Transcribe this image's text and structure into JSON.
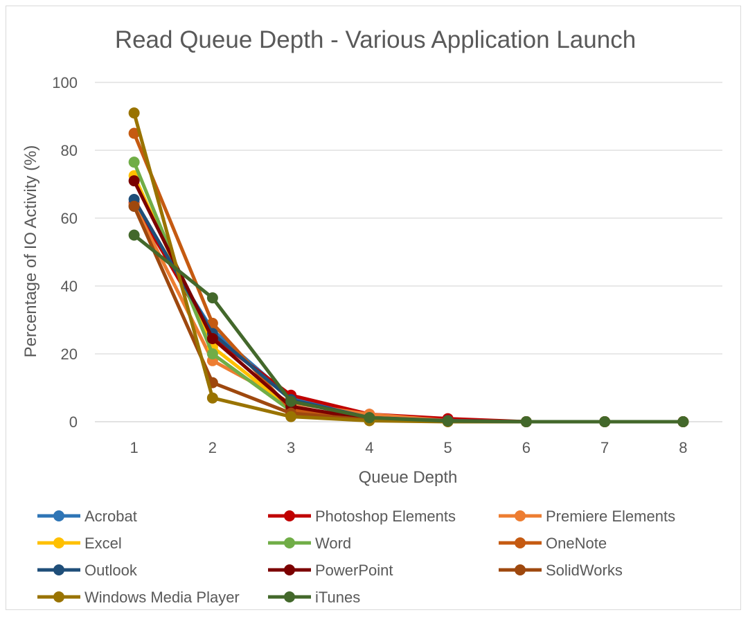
{
  "chart_data": {
    "type": "line",
    "title": "Read Queue Depth - Various Application Launch",
    "xlabel": "Queue Depth",
    "ylabel": "Percentage of IO Activity (%)",
    "x": [
      1,
      2,
      3,
      4,
      5,
      6,
      7,
      8
    ],
    "ylim": [
      0,
      100
    ],
    "yticks": [
      0,
      20,
      40,
      60,
      80,
      100
    ],
    "grid": true,
    "legend_position": "bottom",
    "series": [
      {
        "name": "Acrobat",
        "color": "#2e75b6",
        "values": [
          63.5,
          27,
          7,
          1,
          0.3,
          0,
          0,
          0
        ]
      },
      {
        "name": "Photoshop Elements",
        "color": "#c00000",
        "values": [
          64.5,
          25,
          7.8,
          2.2,
          0.9,
          0,
          0,
          0
        ]
      },
      {
        "name": "Premiere Elements",
        "color": "#ed7d31",
        "values": [
          64,
          18,
          5.5,
          2.2,
          0.3,
          0,
          0,
          0
        ]
      },
      {
        "name": "Excel",
        "color": "#ffc000",
        "values": [
          72.5,
          22,
          4,
          1,
          0.2,
          0,
          0,
          0
        ]
      },
      {
        "name": "Word",
        "color": "#70ad47",
        "values": [
          76.5,
          20,
          3.2,
          0.5,
          0.1,
          0,
          0,
          0
        ]
      },
      {
        "name": "OneNote",
        "color": "#c55a11",
        "values": [
          85,
          29,
          3.5,
          0.5,
          0.1,
          0,
          0,
          0
        ]
      },
      {
        "name": "Outlook",
        "color": "#1f4e79",
        "values": [
          65.5,
          26,
          6.5,
          1.2,
          0.3,
          0,
          0,
          0
        ]
      },
      {
        "name": "PowerPoint",
        "color": "#7b0000",
        "values": [
          71,
          24.5,
          4.5,
          0.7,
          0.1,
          0,
          0,
          0
        ]
      },
      {
        "name": "SolidWorks",
        "color": "#9e480e",
        "values": [
          63.5,
          11.5,
          2.5,
          0.5,
          0.1,
          0,
          0,
          0
        ]
      },
      {
        "name": "Windows Media Player",
        "color": "#997300",
        "values": [
          91,
          7,
          1.5,
          0.3,
          0,
          0,
          0,
          0
        ]
      },
      {
        "name": "iTunes",
        "color": "#43682b",
        "values": [
          55,
          36.5,
          6,
          1.2,
          0.2,
          0,
          0,
          0
        ]
      }
    ]
  }
}
